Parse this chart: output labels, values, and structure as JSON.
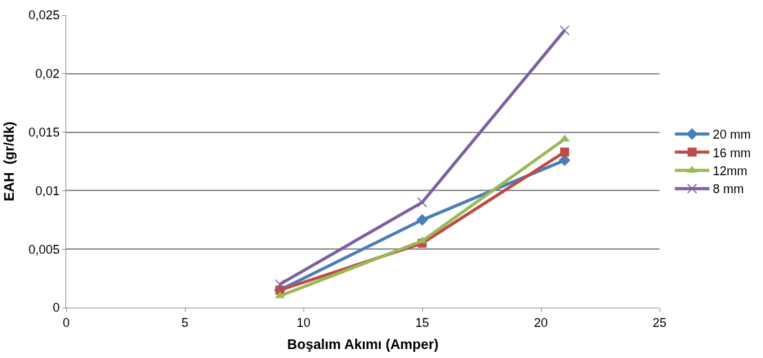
{
  "chart_data": {
    "type": "line",
    "xlabel": "Boşalım Akımı (Amper)",
    "ylabel": "EAH  (gr/dk)",
    "x": [
      9,
      15,
      21
    ],
    "series": [
      {
        "name": "20 mm",
        "color": "#4a7ebb",
        "marker": "diamond",
        "values": [
          0.0015,
          0.0075,
          0.0126
        ]
      },
      {
        "name": "16 mm",
        "color": "#be4b48",
        "marker": "square",
        "values": [
          0.0015,
          0.0055,
          0.0133
        ]
      },
      {
        "name": "12mm",
        "color": "#98b954",
        "marker": "triangle",
        "values": [
          0.001,
          0.0057,
          0.0144
        ]
      },
      {
        "name": "8 mm",
        "color": "#7d60a0",
        "marker": "cross",
        "values": [
          0.002,
          0.009,
          0.0237
        ]
      }
    ],
    "xlim": [
      0,
      25
    ],
    "xticks": [
      0,
      5,
      10,
      15,
      20,
      25
    ],
    "ylim": [
      0,
      0.025
    ],
    "yticks": [
      {
        "value": 0,
        "label": "0"
      },
      {
        "value": 0.005,
        "label": "0,005"
      },
      {
        "value": 0.01,
        "label": "0,01"
      },
      {
        "value": 0.015,
        "label": "0,015"
      },
      {
        "value": 0.02,
        "label": "0,02"
      },
      {
        "value": 0.025,
        "label": "0,025"
      }
    ],
    "grid": "y",
    "legend": "right",
    "line_style": "solid"
  }
}
